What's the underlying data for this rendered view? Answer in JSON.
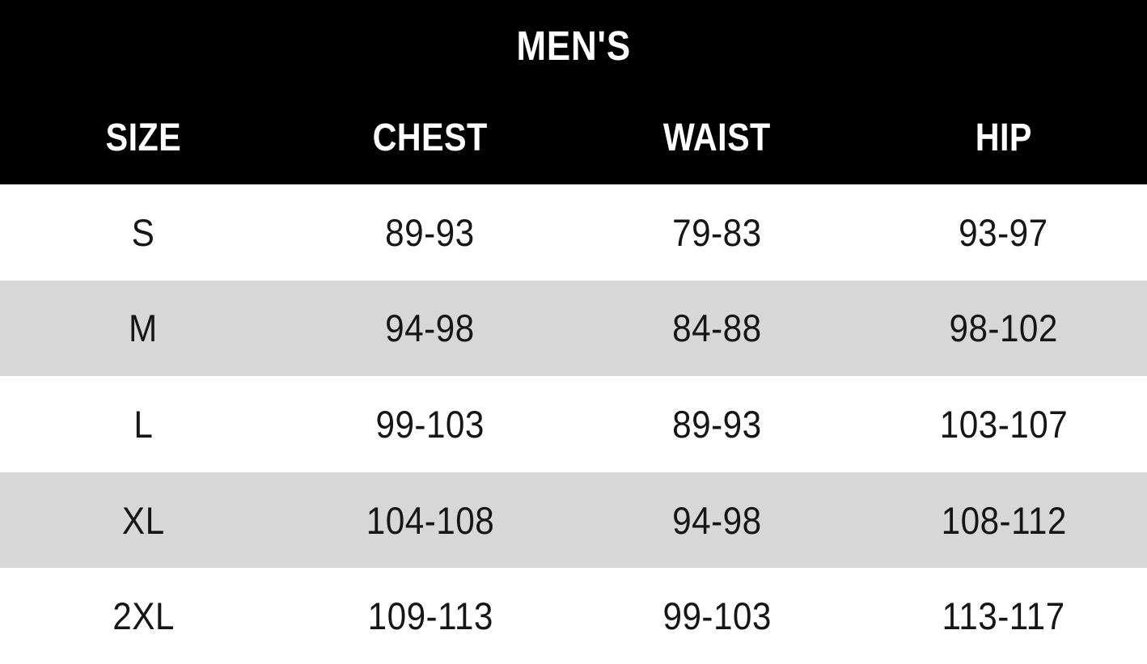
{
  "chart_data": {
    "type": "table",
    "title": "MEN'S",
    "columns": [
      "SIZE",
      "CHEST",
      "WAIST",
      "HIP"
    ],
    "rows": [
      [
        "S",
        "89-93",
        "79-83",
        "93-97"
      ],
      [
        "M",
        "94-98",
        "84-88",
        "98-102"
      ],
      [
        "L",
        "99-103",
        "89-93",
        "103-107"
      ],
      [
        "XL",
        "104-108",
        "94-98",
        "108-112"
      ],
      [
        "2XL",
        "109-113",
        "99-103",
        "113-117"
      ]
    ],
    "layout": {
      "zebra_striping": true,
      "header_position": "top"
    },
    "colors": {
      "header_bg": "#000000",
      "header_text": "#ffffff",
      "row_bg": "#ffffff",
      "zebra_row_bg": "#d7d7d7",
      "body_text": "#161616"
    }
  }
}
